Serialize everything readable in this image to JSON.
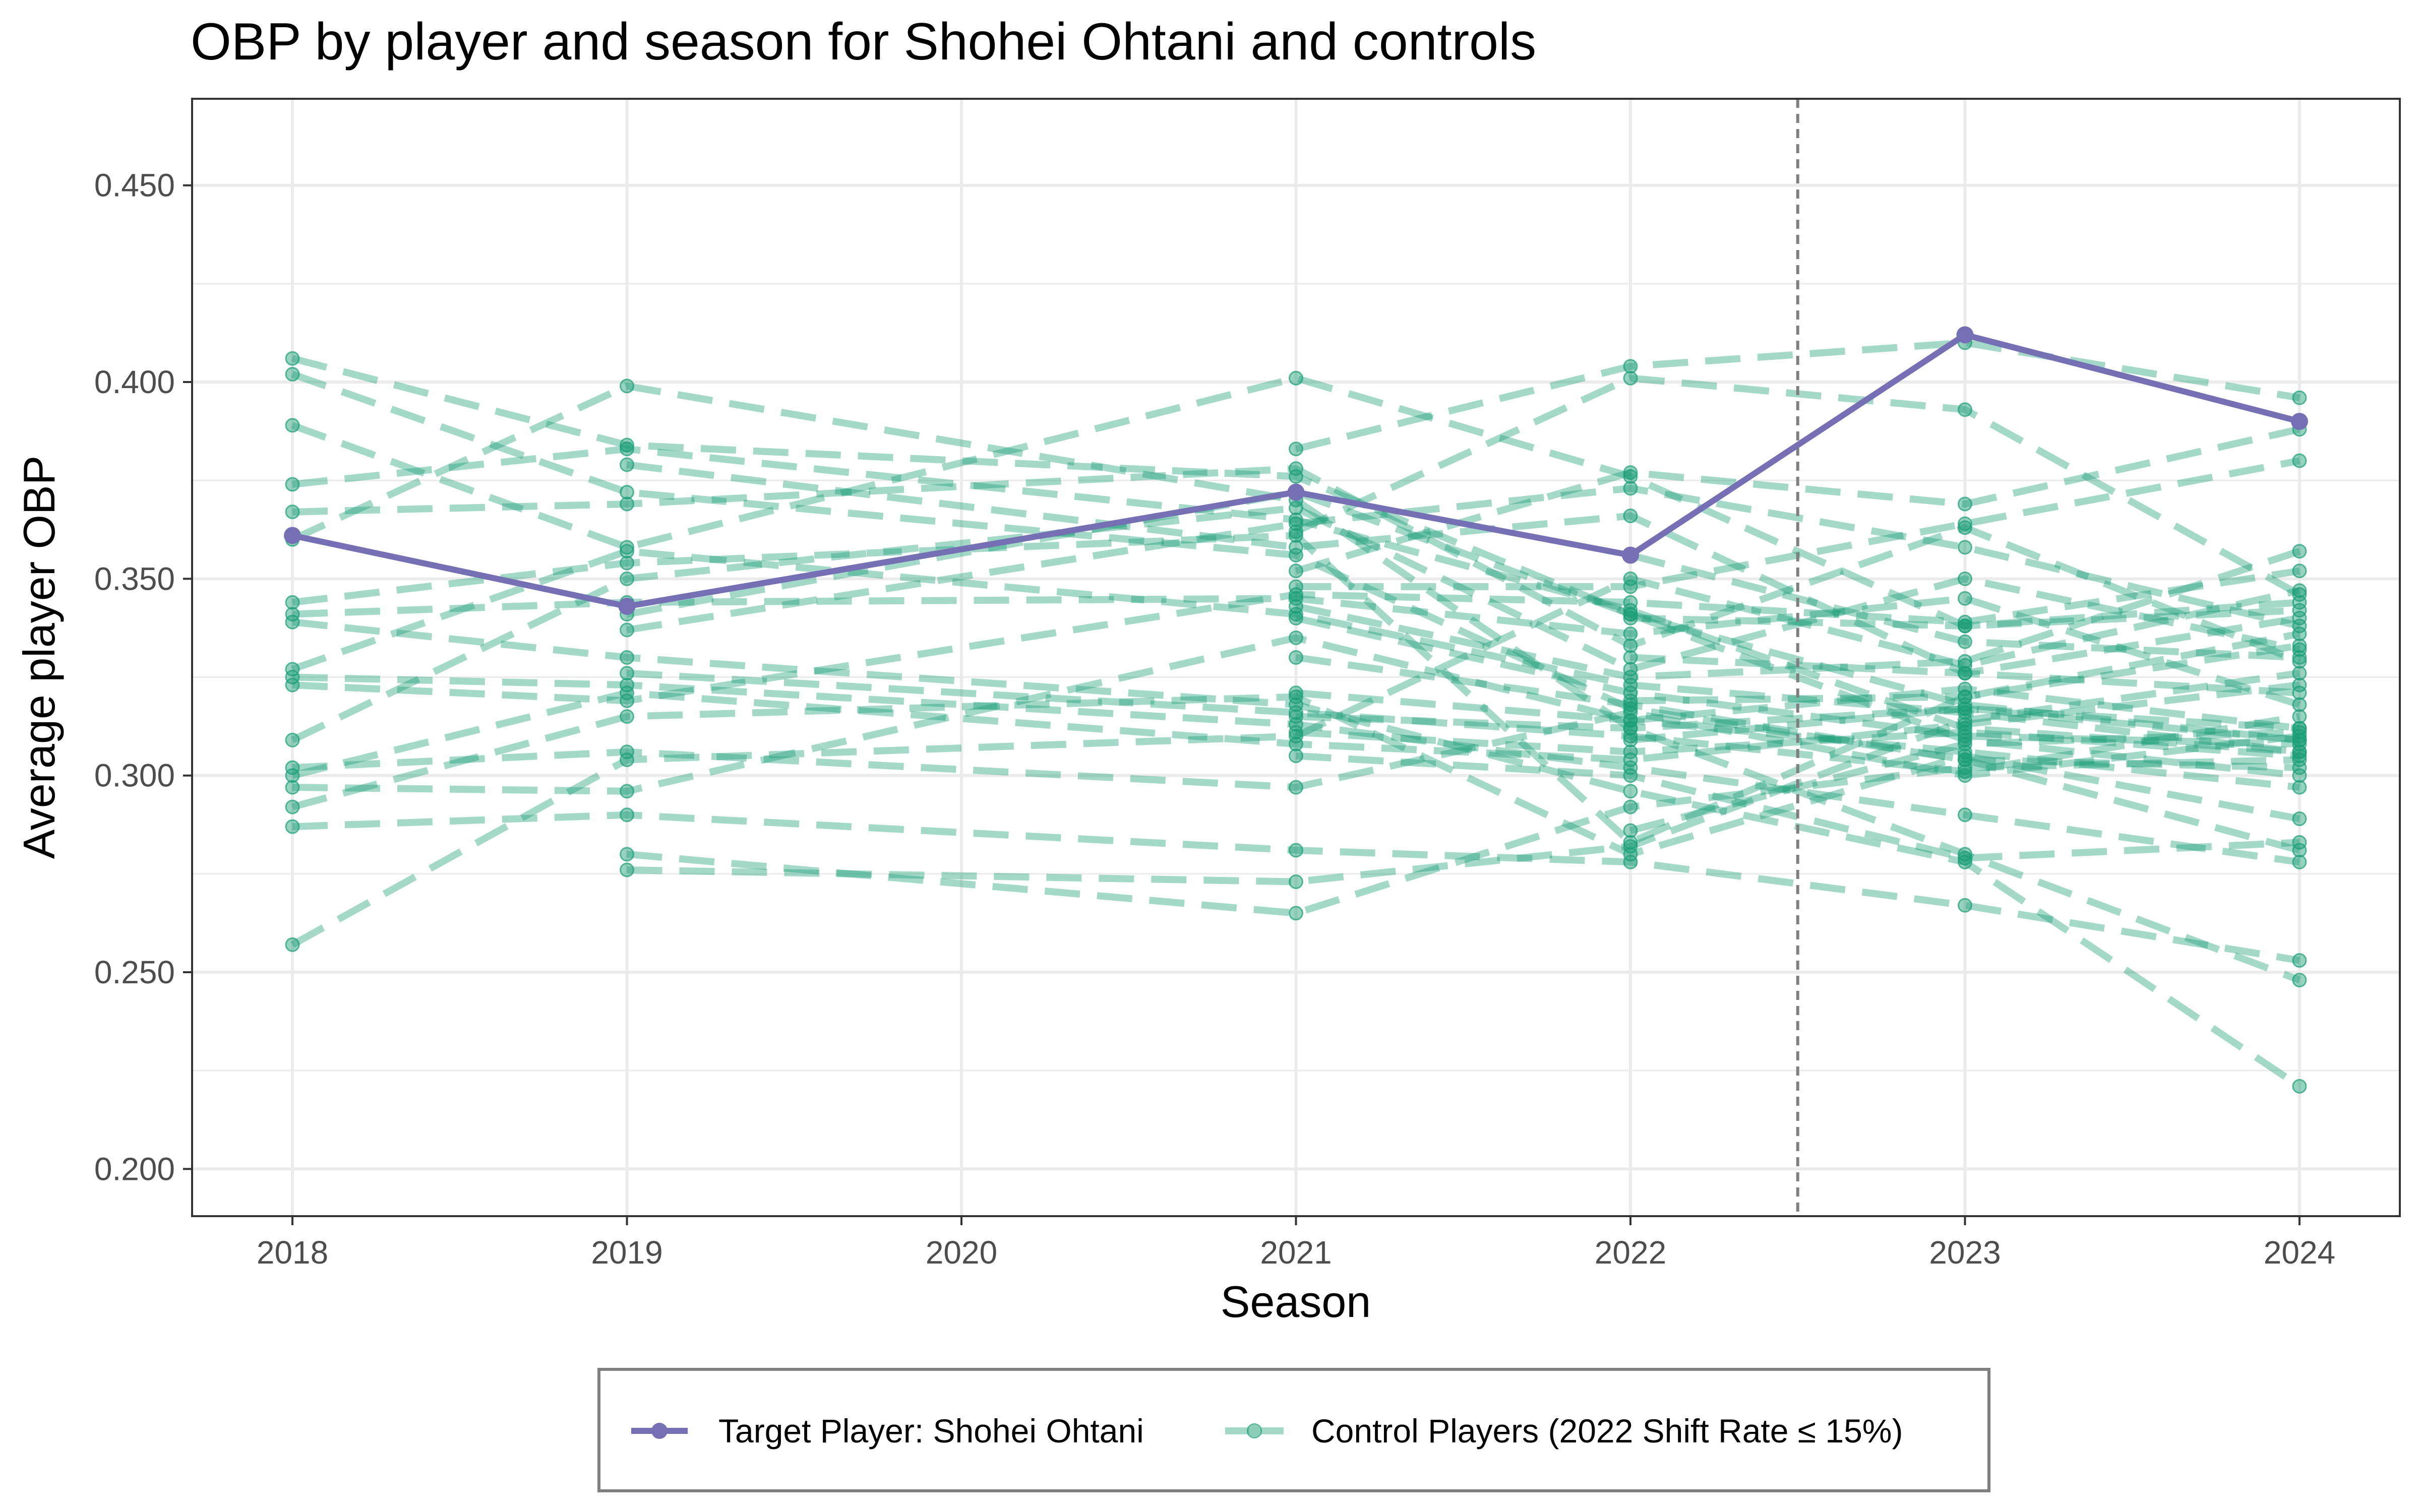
{
  "chart_data": {
    "type": "line",
    "title": "OBP by player and season for Shohei Ohtani and controls",
    "xlabel": "Season",
    "ylabel": "Average player OBP",
    "x_ticks": [
      "2018",
      "2019",
      "2020",
      "2021",
      "2022",
      "2023",
      "2024"
    ],
    "y_ticks": [
      "0.200",
      "0.250",
      "0.300",
      "0.350",
      "0.400",
      "0.450"
    ],
    "xlim": [
      2017.7,
      2024.3
    ],
    "ylim": [
      0.188,
      0.472
    ],
    "grid": true,
    "reference_line": {
      "x": 2022.5,
      "style": "dashed"
    },
    "legend_position": "bottom",
    "colors": {
      "target": "#7570b3",
      "control": "#1b9e77"
    },
    "target_series": {
      "name": "Target Player: Shohei Ohtani",
      "points": [
        [
          2018,
          0.361
        ],
        [
          2019,
          0.343
        ],
        [
          2021,
          0.372
        ],
        [
          2022,
          0.356
        ],
        [
          2023,
          0.412
        ],
        [
          2024,
          0.39
        ]
      ]
    },
    "control_series_label": "Control Players (2022 Shift Rate ≤ 15%)",
    "control_series": [
      [
        [
          2018,
          0.406
        ],
        [
          2019,
          0.384
        ],
        [
          2021,
          0.376
        ],
        [
          2022,
          0.341
        ],
        [
          2023,
          0.318
        ],
        [
          2024,
          0.309
        ]
      ],
      [
        [
          2018,
          0.402
        ],
        [
          2019,
          0.372
        ],
        [
          2021,
          0.356
        ],
        [
          2022,
          0.317
        ],
        [
          2023,
          0.304
        ],
        [
          2024,
          0.281
        ]
      ],
      [
        [
          2018,
          0.389
        ],
        [
          2019,
          0.358
        ],
        [
          2021,
          0.401
        ],
        [
          2022,
          0.376
        ],
        [
          2023,
          0.338
        ],
        [
          2024,
          0.342
        ]
      ],
      [
        [
          2018,
          0.374
        ],
        [
          2019,
          0.383
        ],
        [
          2021,
          0.365
        ],
        [
          2022,
          0.342
        ],
        [
          2023,
          0.312
        ],
        [
          2024,
          0.306
        ]
      ],
      [
        [
          2018,
          0.367
        ],
        [
          2019,
          0.369
        ],
        [
          2021,
          0.378
        ],
        [
          2022,
          0.333
        ],
        [
          2023,
          0.363
        ],
        [
          2024,
          0.329
        ]
      ],
      [
        [
          2018,
          0.36
        ],
        [
          2019,
          0.399
        ],
        [
          2021,
          0.37
        ],
        [
          2022,
          0.312
        ],
        [
          2023,
          0.28
        ],
        [
          2024,
          0.248
        ]
      ],
      [
        [
          2018,
          0.344
        ],
        [
          2019,
          0.354
        ],
        [
          2021,
          0.361
        ],
        [
          2022,
          0.283
        ],
        [
          2023,
          0.32
        ],
        [
          2024,
          0.336
        ]
      ],
      [
        [
          2018,
          0.341
        ],
        [
          2019,
          0.344
        ],
        [
          2021,
          0.345
        ],
        [
          2022,
          0.336
        ],
        [
          2023,
          0.345
        ],
        [
          2024,
          0.318
        ]
      ],
      [
        [
          2018,
          0.339
        ],
        [
          2019,
          0.33
        ],
        [
          2021,
          0.318
        ],
        [
          2022,
          0.296
        ],
        [
          2023,
          0.278
        ],
        [
          2024,
          0.221
        ]
      ],
      [
        [
          2018,
          0.327
        ],
        [
          2019,
          0.357
        ],
        [
          2021,
          0.341
        ],
        [
          2022,
          0.323
        ],
        [
          2023,
          0.316
        ],
        [
          2024,
          0.306
        ]
      ],
      [
        [
          2018,
          0.325
        ],
        [
          2019,
          0.323
        ],
        [
          2021,
          0.313
        ],
        [
          2022,
          0.302
        ],
        [
          2023,
          0.29
        ],
        [
          2024,
          0.278
        ]
      ],
      [
        [
          2018,
          0.323
        ],
        [
          2019,
          0.319
        ],
        [
          2021,
          0.346
        ],
        [
          2022,
          0.344
        ],
        [
          2023,
          0.339
        ],
        [
          2024,
          0.352
        ]
      ],
      [
        [
          2018,
          0.309
        ],
        [
          2019,
          0.35
        ],
        [
          2021,
          0.368
        ],
        [
          2022,
          0.327
        ],
        [
          2023,
          0.35
        ],
        [
          2024,
          0.332
        ]
      ],
      [
        [
          2018,
          0.302
        ],
        [
          2019,
          0.306
        ],
        [
          2021,
          0.297
        ],
        [
          2022,
          0.316
        ],
        [
          2023,
          0.3
        ],
        [
          2024,
          0.31
        ]
      ],
      [
        [
          2018,
          0.3
        ],
        [
          2019,
          0.321
        ],
        [
          2021,
          0.308
        ],
        [
          2022,
          0.304
        ],
        [
          2023,
          0.313
        ],
        [
          2024,
          0.323
        ]
      ],
      [
        [
          2018,
          0.297
        ],
        [
          2019,
          0.296
        ],
        [
          2021,
          0.335
        ],
        [
          2022,
          0.314
        ],
        [
          2023,
          0.322
        ],
        [
          2024,
          0.312
        ]
      ],
      [
        [
          2018,
          0.292
        ],
        [
          2019,
          0.315
        ],
        [
          2021,
          0.32
        ],
        [
          2022,
          0.28
        ],
        [
          2023,
          0.305
        ],
        [
          2024,
          0.289
        ]
      ],
      [
        [
          2018,
          0.287
        ],
        [
          2019,
          0.29
        ],
        [
          2021,
          0.281
        ],
        [
          2022,
          0.278
        ],
        [
          2023,
          0.267
        ],
        [
          2024,
          0.253
        ]
      ],
      [
        [
          2018,
          0.257
        ],
        [
          2019,
          0.304
        ],
        [
          2021,
          0.31
        ],
        [
          2022,
          0.35
        ],
        [
          2023,
          0.328
        ],
        [
          2024,
          0.347
        ]
      ],
      [
        [
          2019,
          0.337
        ],
        [
          2021,
          0.364
        ],
        [
          2022,
          0.373
        ],
        [
          2023,
          0.358
        ],
        [
          2024,
          0.338
        ]
      ],
      [
        [
          2019,
          0.341
        ],
        [
          2021,
          0.372
        ],
        [
          2022,
          0.341
        ],
        [
          2023,
          0.309
        ],
        [
          2024,
          0.3
        ]
      ],
      [
        [
          2019,
          0.326
        ],
        [
          2021,
          0.316
        ],
        [
          2022,
          0.31
        ],
        [
          2023,
          0.301
        ],
        [
          2024,
          0.315
        ]
      ],
      [
        [
          2019,
          0.28
        ],
        [
          2021,
          0.265
        ],
        [
          2022,
          0.292
        ],
        [
          2023,
          0.302
        ],
        [
          2024,
          0.304
        ]
      ],
      [
        [
          2019,
          0.276
        ],
        [
          2021,
          0.273
        ],
        [
          2022,
          0.282
        ],
        [
          2023,
          0.314
        ],
        [
          2024,
          0.326
        ]
      ],
      [
        [
          2019,
          0.379
        ],
        [
          2021,
          0.358
        ],
        [
          2022,
          0.366
        ],
        [
          2023,
          0.326
        ],
        [
          2024,
          0.34
        ]
      ],
      [
        [
          2021,
          0.383
        ],
        [
          2022,
          0.404
        ],
        [
          2023,
          0.41
        ],
        [
          2024,
          0.396
        ]
      ],
      [
        [
          2021,
          0.362
        ],
        [
          2022,
          0.401
        ],
        [
          2023,
          0.393
        ],
        [
          2024,
          0.346
        ]
      ],
      [
        [
          2021,
          0.352
        ],
        [
          2022,
          0.377
        ],
        [
          2023,
          0.369
        ],
        [
          2024,
          0.388
        ]
      ],
      [
        [
          2021,
          0.348
        ],
        [
          2022,
          0.348
        ],
        [
          2023,
          0.364
        ],
        [
          2024,
          0.38
        ]
      ],
      [
        [
          2021,
          0.343
        ],
        [
          2022,
          0.325
        ],
        [
          2023,
          0.329
        ],
        [
          2024,
          0.357
        ]
      ],
      [
        [
          2021,
          0.34
        ],
        [
          2022,
          0.321
        ],
        [
          2023,
          0.31
        ],
        [
          2024,
          0.308
        ]
      ],
      [
        [
          2021,
          0.33
        ],
        [
          2022,
          0.318
        ],
        [
          2023,
          0.304
        ],
        [
          2024,
          0.302
        ]
      ],
      [
        [
          2021,
          0.321
        ],
        [
          2022,
          0.314
        ],
        [
          2023,
          0.306
        ],
        [
          2024,
          0.297
        ]
      ],
      [
        [
          2021,
          0.315
        ],
        [
          2022,
          0.312
        ],
        [
          2023,
          0.317
        ],
        [
          2024,
          0.312
        ]
      ],
      [
        [
          2021,
          0.311
        ],
        [
          2022,
          0.306
        ],
        [
          2023,
          0.311
        ],
        [
          2024,
          0.305
        ]
      ],
      [
        [
          2021,
          0.305
        ],
        [
          2022,
          0.3
        ],
        [
          2023,
          0.279
        ],
        [
          2024,
          0.283
        ]
      ],
      [
        [
          2022,
          0.33
        ],
        [
          2023,
          0.326
        ],
        [
          2024,
          0.321
        ]
      ],
      [
        [
          2022,
          0.319
        ],
        [
          2023,
          0.32
        ],
        [
          2024,
          0.333
        ]
      ],
      [
        [
          2022,
          0.309
        ],
        [
          2023,
          0.317
        ],
        [
          2024,
          0.309
        ]
      ],
      [
        [
          2022,
          0.286
        ],
        [
          2023,
          0.308
        ],
        [
          2024,
          0.311
        ]
      ],
      [
        [
          2022,
          0.34
        ],
        [
          2023,
          0.338
        ],
        [
          2024,
          0.344
        ]
      ],
      [
        [
          2022,
          0.356
        ],
        [
          2023,
          0.334
        ],
        [
          2024,
          0.33
        ]
      ]
    ]
  }
}
